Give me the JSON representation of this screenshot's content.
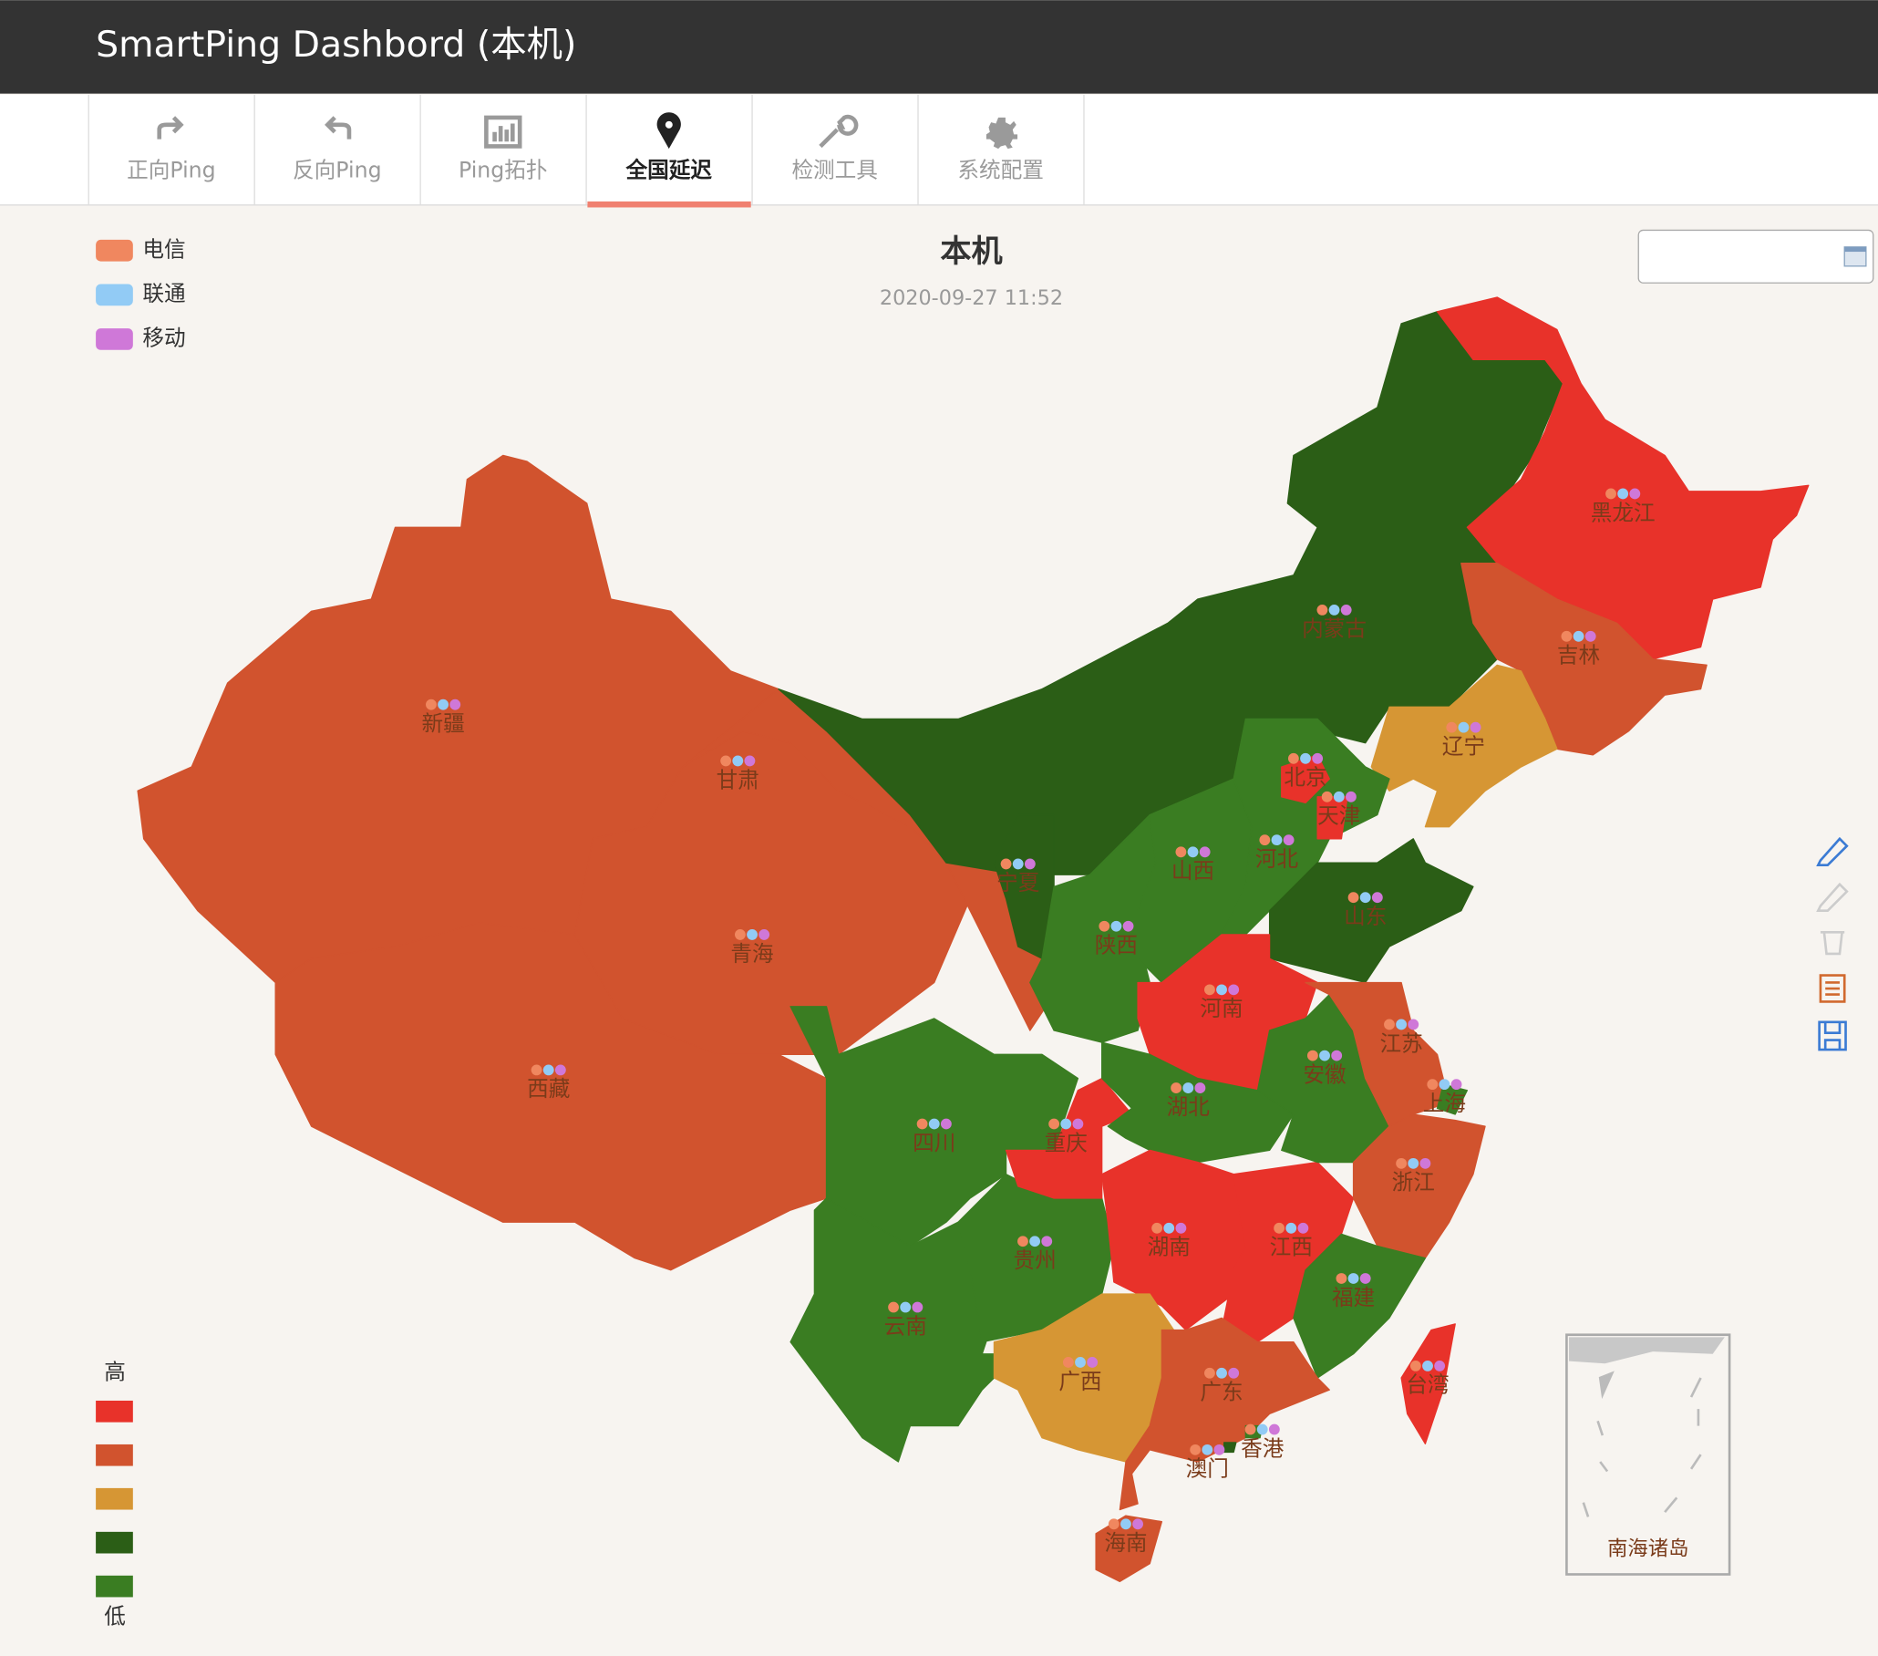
{
  "header": {
    "title": "SmartPing Dashbord (本机)"
  },
  "nav": {
    "active": 3,
    "tabs": [
      "正向Ping",
      "反向Ping",
      "Ping拓扑",
      "全国延迟",
      "检测工具",
      "系统配置"
    ]
  },
  "legend": [
    {
      "name": "电信",
      "color": "#f0875f"
    },
    {
      "name": "联通",
      "color": "#92cbf5"
    },
    {
      "name": "移动",
      "color": "#cf78d8"
    }
  ],
  "map": {
    "title": "本机",
    "subtitle": "2020-09-27 11:52",
    "inset_label": "南海诸岛",
    "provinces": [
      {
        "name": "新疆",
        "color": "#d1532e"
      },
      {
        "name": "西藏",
        "color": "#d1532e"
      },
      {
        "name": "青海",
        "color": "#d1532e"
      },
      {
        "name": "甘肃",
        "color": "#d1532e"
      },
      {
        "name": "内蒙古",
        "color": "#2b5e16"
      },
      {
        "name": "黑龙江",
        "color": "#e8322a"
      },
      {
        "name": "吉林",
        "color": "#d1532e"
      },
      {
        "name": "辽宁",
        "color": "#d69634"
      },
      {
        "name": "宁夏",
        "color": "#2b5e16"
      },
      {
        "name": "陕西",
        "color": "#3a7d22"
      },
      {
        "name": "山西",
        "color": "#3a7d22"
      },
      {
        "name": "河北",
        "color": "#3a7d22"
      },
      {
        "name": "北京",
        "color": "#e8322a"
      },
      {
        "name": "天津",
        "color": "#e8322a"
      },
      {
        "name": "山东",
        "color": "#2b5e16"
      },
      {
        "name": "河南",
        "color": "#e8322a"
      },
      {
        "name": "四川",
        "color": "#3a7d22"
      },
      {
        "name": "云南",
        "color": "#3a7d22"
      },
      {
        "name": "贵州",
        "color": "#3a7d22"
      },
      {
        "name": "重庆",
        "color": "#e8322a"
      },
      {
        "name": "湖北",
        "color": "#3a7d22"
      },
      {
        "name": "湖南",
        "color": "#e8322a"
      },
      {
        "name": "江西",
        "color": "#e8322a"
      },
      {
        "name": "安徽",
        "color": "#3a7d22"
      },
      {
        "name": "江苏",
        "color": "#d1532e"
      },
      {
        "name": "上海",
        "color": "#3a7d22"
      },
      {
        "name": "浙江",
        "color": "#d1532e"
      },
      {
        "name": "福建",
        "color": "#3a7d22"
      },
      {
        "name": "广西",
        "color": "#d69634"
      },
      {
        "name": "广东",
        "color": "#d1532e"
      },
      {
        "name": "海南",
        "color": "#d1532e"
      },
      {
        "name": "台湾",
        "color": "#e8322a"
      },
      {
        "name": "香港",
        "color": "#3a7d22"
      },
      {
        "name": "澳门",
        "color": "#2b5e16"
      }
    ]
  },
  "visual_map": {
    "high": "高",
    "low": "低",
    "colors": [
      "#e8322a",
      "#d1532e",
      "#d69634",
      "#2b5e16",
      "#3a7d22"
    ]
  }
}
